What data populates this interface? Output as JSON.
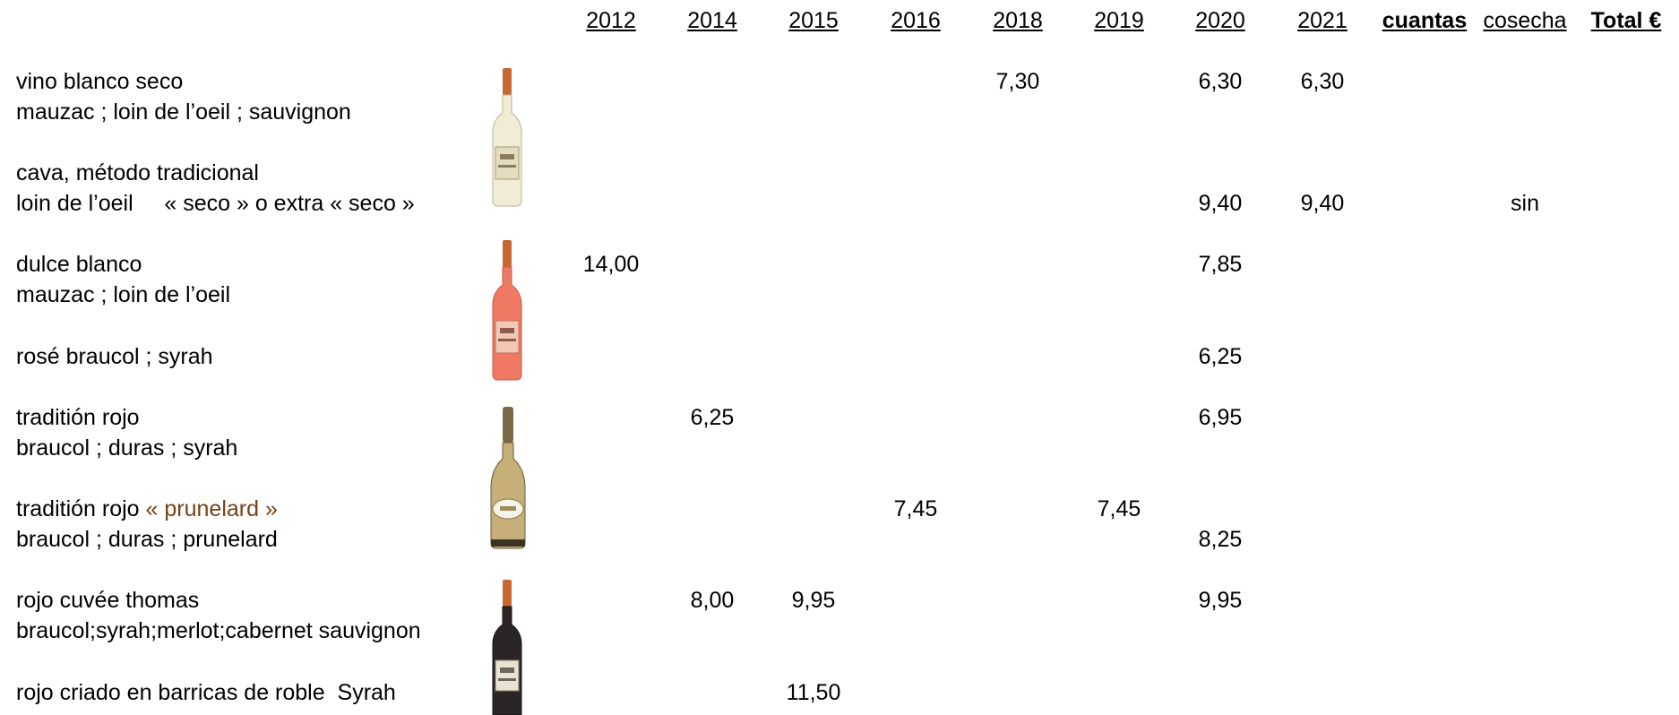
{
  "headers": {
    "y2012": "2012",
    "y2014": "2014",
    "y2015": "2015",
    "y2016": "2016",
    "y2018": "2018",
    "y2019": "2019",
    "y2020": "2020",
    "y2021": "2021",
    "cuantas": "cuantas",
    "cosecha": "cosecha",
    "total": "Total €"
  },
  "wines": [
    {
      "name": "vino blanco seco",
      "grapes": "mauzac ; loin de l’oeil ; sauvignon",
      "prices": {
        "2018": "7,30",
        "2020": "6,30",
        "2021": "6,30"
      }
    },
    {
      "name": "cava, método tradicional",
      "grapes": "loin de l’oeil     « seco » o extra « seco »",
      "prices": {
        "2020": "9,40",
        "2021": "9,40"
      },
      "cosecha": "sin"
    },
    {
      "name": "dulce blanco",
      "grapes": "mauzac ; loin de l’oeil",
      "prices": {
        "2012": "14,00",
        "2020": "7,85"
      }
    },
    {
      "name": "rosé braucol ; syrah",
      "prices": {
        "2020": "6,25"
      }
    },
    {
      "name": "traditión rojo",
      "grapes": "braucol ; duras ; syrah",
      "prices": {
        "2014": "6,25",
        "2020": "6,95"
      }
    },
    {
      "name": "traditión rojo ",
      "name_accent": "« prunelard »",
      "grapes": "braucol ; duras ; prunelard",
      "prices": {
        "2016": "7,45",
        "2019": "7,45",
        "2020": "8,25"
      }
    },
    {
      "name": "rojo cuvée thomas",
      "grapes": "braucol;syrah;merlot;cabernet sauvignon",
      "prices": {
        "2014": "8,00",
        "2015": "9,95",
        "2020": "9,95"
      }
    },
    {
      "name": "rojo criado en barricas de roble  Syrah",
      "prices": {
        "2015": "11,50"
      }
    }
  ],
  "bottles": [
    {
      "icon": "white-wine-bottle-icon",
      "glass": "#f1ecd4",
      "capsule": "#c8672e"
    },
    {
      "icon": "rose-wine-bottle-icon",
      "glass": "#ef7a63",
      "capsule": "#c8672e"
    },
    {
      "icon": "sparkling-wine-bottle-icon",
      "glass": "#c5ae78",
      "capsule": "#7a6a45"
    },
    {
      "icon": "red-wine-bottle-icon",
      "glass": "#2b2626",
      "capsule": "#c8672e"
    }
  ]
}
